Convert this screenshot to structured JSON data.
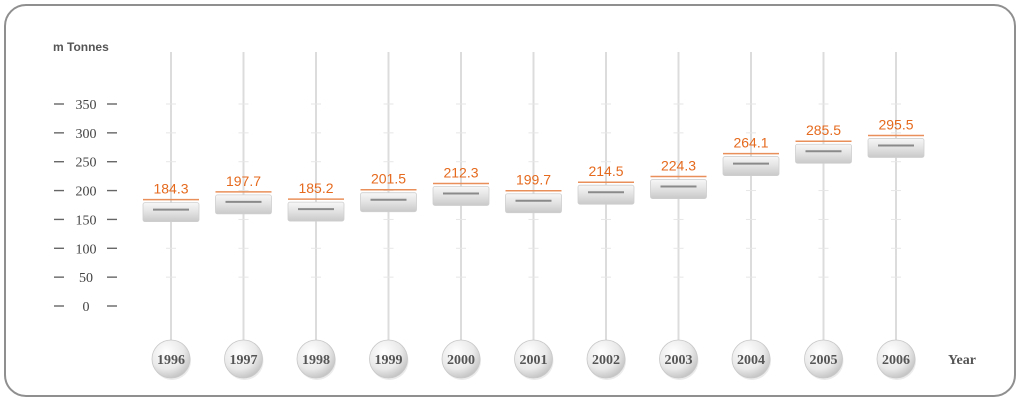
{
  "chart_data": {
    "type": "bar",
    "title": "",
    "ylabel": "m Tonnes",
    "xlabel": "Year",
    "categories": [
      "1996",
      "1997",
      "1998",
      "1999",
      "2000",
      "2001",
      "2002",
      "2003",
      "2004",
      "2005",
      "2006"
    ],
    "values": [
      184.3,
      197.7,
      185.2,
      201.5,
      212.3,
      199.7,
      214.5,
      224.3,
      264.1,
      285.5,
      295.5
    ],
    "data_labels": [
      "184.3",
      "197.7",
      "185.2",
      "201.5",
      "212.3",
      "199.7",
      "214.5",
      "224.3",
      "264.1",
      "285.5",
      "295.5"
    ],
    "yticks": [
      350,
      300,
      250,
      200,
      150,
      100,
      50,
      0
    ],
    "ylim": [
      0,
      350
    ],
    "grid": false,
    "colors": {
      "value_text": "#e56a1e",
      "value_line": "#e9905a",
      "rail": "#dcdcdc",
      "marker": "#8a8a8a"
    }
  }
}
